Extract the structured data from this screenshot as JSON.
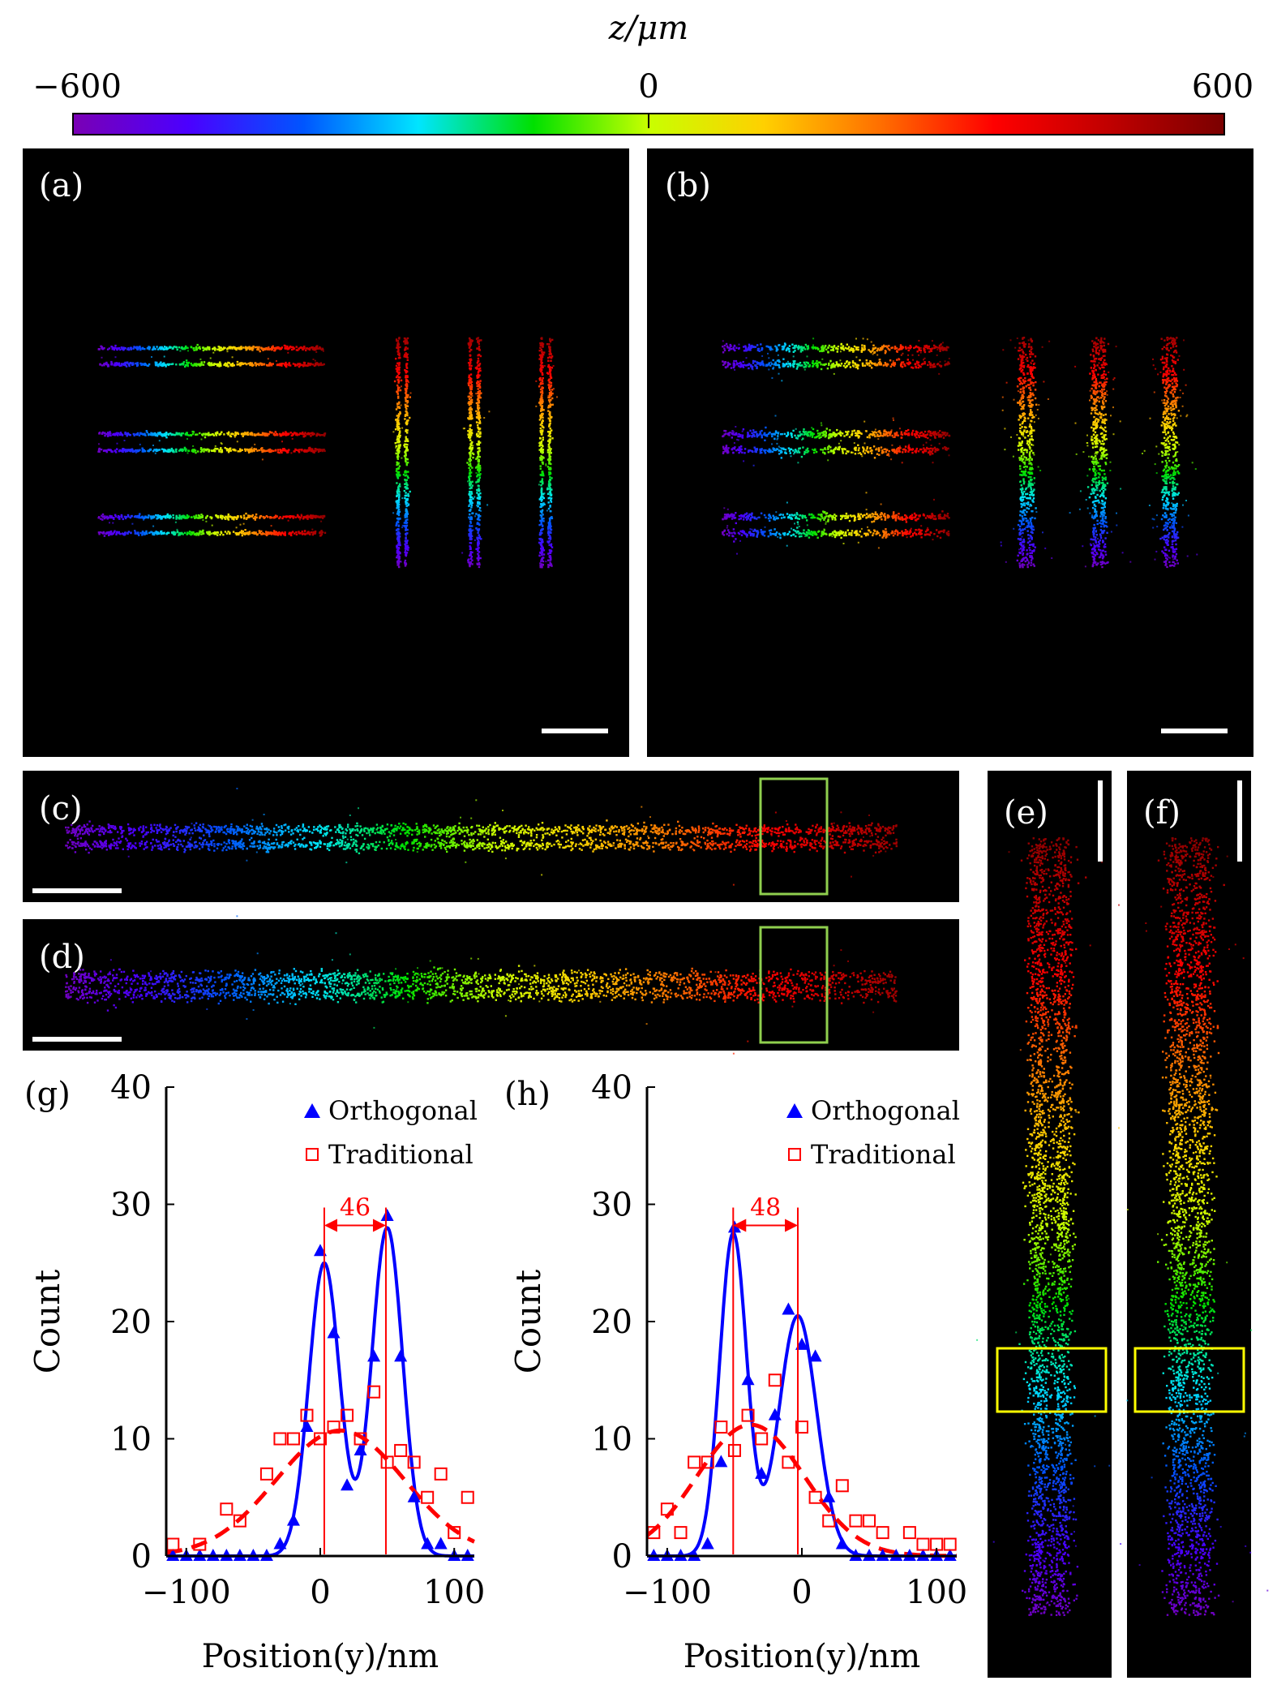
{
  "colorbar": {
    "title": "z/μm",
    "min_label": "−600",
    "mid_label": "0",
    "max_label": "600",
    "range": [
      -600,
      600
    ],
    "colors": [
      "#7a00b4",
      "#4b00ff",
      "#0055ff",
      "#00e5ff",
      "#00e000",
      "#c8ff00",
      "#ffd000",
      "#ff7000",
      "#ff0000",
      "#c00000",
      "#7a0000"
    ]
  },
  "panels": {
    "a": "(a)",
    "b": "(b)",
    "c": "(c)",
    "d": "(d)",
    "e": "(e)",
    "f": "(f)",
    "g": "(g)",
    "h": "(h)"
  },
  "box_colors": {
    "green": "#8fcf4e",
    "yellow": "#ffff00"
  },
  "chart_data": [
    {
      "panel": "(g)",
      "type": "scatter",
      "xlabel": "Position(y)/nm",
      "ylabel": "Count",
      "xlim": [
        -115,
        115
      ],
      "ylim": [
        0,
        40
      ],
      "xticks": [
        "−100",
        "0",
        "100"
      ],
      "xtick_values": [
        -100,
        0,
        100
      ],
      "yticks": [
        "0",
        "10",
        "20",
        "30",
        "40"
      ],
      "ytick_values": [
        0,
        10,
        20,
        30,
        40
      ],
      "annotation": {
        "text": "46",
        "x1": 3,
        "x2": 49,
        "y": 28.2
      },
      "legend": {
        "position": "top-right"
      },
      "series": [
        {
          "name": "Orthogonal",
          "marker": "triangle",
          "color": "#0000ff",
          "x": [
            -110,
            -100,
            -90,
            -80,
            -70,
            -60,
            -50,
            -40,
            -30,
            -20,
            -10,
            0,
            10,
            20,
            30,
            40,
            50,
            60,
            70,
            80,
            90,
            100,
            110
          ],
          "y": [
            0,
            0,
            0,
            0,
            0,
            0,
            0,
            0,
            1,
            3,
            11,
            26,
            19,
            6,
            9,
            17,
            29,
            17,
            5,
            1,
            1,
            0,
            0
          ],
          "fit": [
            {
              "amp": 25,
              "mu": 3,
              "sigma": 11.5
            },
            {
              "amp": 28,
              "mu": 50,
              "sigma": 11.5
            }
          ]
        },
        {
          "name": "Traditional",
          "marker": "square-open",
          "color": "#ff0000",
          "x": [
            -110,
            -90,
            -70,
            -60,
            -40,
            -30,
            -20,
            -10,
            0,
            10,
            20,
            30,
            40,
            50,
            60,
            70,
            80,
            90,
            100,
            110
          ],
          "y": [
            1,
            1,
            4,
            3,
            7,
            10,
            10,
            12,
            10,
            11,
            12,
            10,
            14,
            8,
            9,
            8,
            5,
            7,
            2,
            5
          ],
          "fit": [
            {
              "amp": 10.7,
              "mu": 15,
              "sigma": 48
            }
          ]
        }
      ]
    },
    {
      "panel": "(h)",
      "type": "scatter",
      "xlabel": "Position(y)/nm",
      "ylabel": "Count",
      "xlim": [
        -115,
        115
      ],
      "ylim": [
        0,
        40
      ],
      "xticks": [
        "−100",
        "0",
        "100"
      ],
      "xtick_values": [
        -100,
        0,
        100
      ],
      "yticks": [
        "0",
        "10",
        "20",
        "30",
        "40"
      ],
      "ytick_values": [
        0,
        10,
        20,
        30,
        40
      ],
      "annotation": {
        "text": "48",
        "x1": -51,
        "x2": -3,
        "y": 28.2
      },
      "legend": {
        "position": "top-right"
      },
      "series": [
        {
          "name": "Orthogonal",
          "marker": "triangle",
          "color": "#0000ff",
          "x": [
            -110,
            -100,
            -90,
            -80,
            -70,
            -60,
            -50,
            -40,
            -30,
            -20,
            -10,
            0,
            10,
            20,
            30,
            40,
            50,
            60,
            70,
            80,
            90,
            100,
            110
          ],
          "y": [
            0,
            0,
            0,
            0,
            1,
            8,
            28,
            15,
            7,
            12,
            21,
            18,
            17,
            5,
            1,
            0,
            0,
            0,
            0,
            0,
            0,
            0,
            0
          ],
          "fit": [
            {
              "amp": 27.5,
              "mu": -51,
              "sigma": 10
            },
            {
              "amp": 20.5,
              "mu": -3,
              "sigma": 14
            }
          ]
        },
        {
          "name": "Traditional",
          "marker": "square-open",
          "color": "#ff0000",
          "x": [
            -110,
            -100,
            -90,
            -80,
            -70,
            -60,
            -50,
            -40,
            -30,
            -20,
            -10,
            0,
            10,
            20,
            30,
            40,
            50,
            60,
            80,
            90,
            100,
            110
          ],
          "y": [
            2,
            4,
            2,
            8,
            8,
            11,
            9,
            12,
            10,
            15,
            8,
            11,
            5,
            3,
            6,
            3,
            3,
            2,
            2,
            1,
            1,
            1
          ],
          "fit": [
            {
              "amp": 11.2,
              "mu": -38,
              "sigma": 40
            }
          ]
        }
      ]
    }
  ]
}
